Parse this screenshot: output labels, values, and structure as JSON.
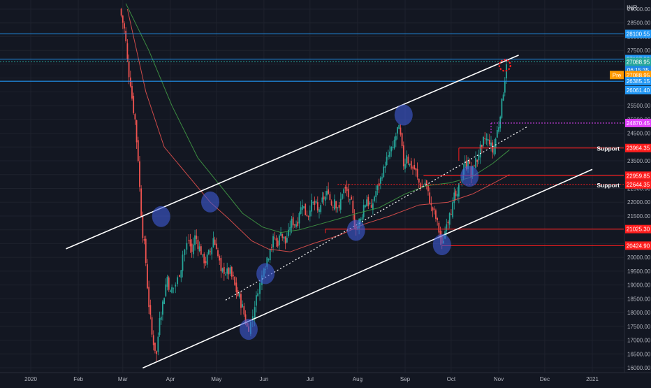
{
  "chart_data": {
    "type": "candlestick",
    "currency": "INR",
    "x_ticks": [
      {
        "label": "2020",
        "date": "2020-01-01"
      },
      {
        "label": "Feb",
        "date": "2020-02-01"
      },
      {
        "label": "Mar",
        "date": "2020-03-01"
      },
      {
        "label": "Apr",
        "date": "2020-04-01"
      },
      {
        "label": "May",
        "date": "2020-05-01"
      },
      {
        "label": "Jun",
        "date": "2020-06-01"
      },
      {
        "label": "Jul",
        "date": "2020-07-01"
      },
      {
        "label": "Aug",
        "date": "2020-08-01"
      },
      {
        "label": "Sep",
        "date": "2020-09-01"
      },
      {
        "label": "Oct",
        "date": "2020-10-01"
      },
      {
        "label": "Nov",
        "date": "2020-11-01"
      },
      {
        "label": "Dec",
        "date": "2020-12-01"
      },
      {
        "label": "2021",
        "date": "2021-01-01"
      }
    ],
    "y_ticks": [
      "16000.00",
      "16500.00",
      "17000.00",
      "17500.00",
      "18000.00",
      "18500.00",
      "19000.00",
      "19500.00",
      "20000.00",
      "20500.00",
      "21000.00",
      "21500.00",
      "22000.00",
      "22500.00",
      "23000.00",
      "23500.00",
      "24000.00",
      "24500.00",
      "25000.00",
      "25500.00",
      "26000.00",
      "26500.00",
      "27000.00",
      "27500.00",
      "28000.00",
      "28500.00",
      "29000.00"
    ],
    "ylim": [
      15930,
      29220
    ],
    "grid": true,
    "price_levels": [
      {
        "label": "28100.55",
        "value": 28100.55,
        "color": "#2196f3",
        "style": "solid"
      },
      {
        "label": "27187.80",
        "value": 27187.8,
        "color": "#2196f3",
        "style": "solid"
      },
      {
        "label": "27088.95",
        "value": 27088.95,
        "color": "#26a69a",
        "style": "dotted"
      },
      {
        "label": "06:15:35",
        "value": 26790,
        "color": "#1e88e5",
        "style": "none"
      },
      {
        "label": "27088.95",
        "prefix": "Pre",
        "value": 26610,
        "color": "#ff9800",
        "style": "none"
      },
      {
        "label": "26385.15",
        "value": 26385.15,
        "color": "#2196f3",
        "style": "solid"
      },
      {
        "label": "26061.40",
        "value": 26061.4,
        "color": "#2196f3",
        "style": "none"
      },
      {
        "label": "24870.45",
        "value": 24870.45,
        "color": "#e040fb",
        "style": "dotted"
      },
      {
        "label": "23964.35",
        "value": 23964.35,
        "color": "#ff1e1e",
        "style": "solid"
      },
      {
        "label": "22959.85",
        "value": 22959.85,
        "color": "#ff1e1e",
        "style": "solid"
      },
      {
        "label": "22644.35",
        "value": 22644.35,
        "color": "#ff1e1e",
        "style": "dotted"
      },
      {
        "label": "21025.30",
        "value": 21025.3,
        "color": "#ff1e1e",
        "style": "solid"
      },
      {
        "label": "20424.90",
        "value": 20424.9,
        "color": "#ff1e1e",
        "style": "solid"
      }
    ],
    "annotations": [
      {
        "text": "Support",
        "value": 23964.35
      },
      {
        "text": "Support",
        "value": 22644.35
      }
    ],
    "trend_lines": [
      {
        "kind": "upper-channel",
        "start": [
          "2020-01-24",
          20310
        ],
        "end": [
          "2020-11-14",
          27330
        ]
      },
      {
        "kind": "lower-channel",
        "start": [
          "2020-03-14",
          15990
        ],
        "end": [
          "2021-01-01",
          23190
        ]
      },
      {
        "kind": "mid-dotted",
        "start": [
          "2020-05-07",
          18450
        ],
        "end": [
          "2020-11-20",
          24750
        ]
      }
    ],
    "touch_points": [
      {
        "date": "2020-03-26",
        "value": 21480
      },
      {
        "date": "2020-04-27",
        "value": 22010
      },
      {
        "date": "2020-05-22",
        "value": 17390
      },
      {
        "date": "2020-06-02",
        "value": 19410
      },
      {
        "date": "2020-07-31",
        "value": 20980
      },
      {
        "date": "2020-08-31",
        "value": 25160
      },
      {
        "date": "2020-09-25",
        "value": 20460
      },
      {
        "date": "2020-10-13",
        "value": 22940
      }
    ],
    "target_marker": {
      "date": "2020-11-05",
      "value": 26960
    },
    "series": [
      {
        "kind": "price",
        "points": [
          [
            "2020-02-28",
            29000
          ],
          [
            "2020-03-02",
            28300
          ],
          [
            "2020-03-04",
            27200
          ],
          [
            "2020-03-06",
            26200
          ],
          [
            "2020-03-09",
            25000
          ],
          [
            "2020-03-11",
            23500
          ],
          [
            "2020-03-13",
            21500
          ],
          [
            "2020-03-16",
            19800
          ],
          [
            "2020-03-18",
            18200
          ],
          [
            "2020-03-20",
            17200
          ],
          [
            "2020-03-23",
            16500
          ],
          [
            "2020-03-25",
            17800
          ],
          [
            "2020-03-27",
            18400
          ],
          [
            "2020-03-30",
            19300
          ],
          [
            "2020-04-01",
            18800
          ],
          [
            "2020-04-03",
            18900
          ],
          [
            "2020-04-07",
            19300
          ],
          [
            "2020-04-09",
            20100
          ],
          [
            "2020-04-13",
            20600
          ],
          [
            "2020-04-15",
            20200
          ],
          [
            "2020-04-17",
            20800
          ],
          [
            "2020-04-20",
            20400
          ],
          [
            "2020-04-22",
            20100
          ],
          [
            "2020-04-24",
            19800
          ],
          [
            "2020-04-27",
            20200
          ],
          [
            "2020-04-29",
            20700
          ],
          [
            "2020-05-01",
            20300
          ],
          [
            "2020-05-04",
            19500
          ],
          [
            "2020-05-06",
            19400
          ],
          [
            "2020-05-08",
            19600
          ],
          [
            "2020-05-11",
            19300
          ],
          [
            "2020-05-13",
            19000
          ],
          [
            "2020-05-15",
            18600
          ],
          [
            "2020-05-18",
            18300
          ],
          [
            "2020-05-20",
            17600
          ],
          [
            "2020-05-22",
            17300
          ],
          [
            "2020-05-26",
            18200
          ],
          [
            "2020-05-28",
            18700
          ],
          [
            "2020-06-01",
            19600
          ],
          [
            "2020-06-03",
            20000
          ],
          [
            "2020-06-05",
            20300
          ],
          [
            "2020-06-08",
            20700
          ],
          [
            "2020-06-10",
            20400
          ],
          [
            "2020-06-12",
            20900
          ],
          [
            "2020-06-15",
            20500
          ],
          [
            "2020-06-17",
            21000
          ],
          [
            "2020-06-19",
            21400
          ],
          [
            "2020-06-22",
            21200
          ],
          [
            "2020-06-24",
            21600
          ],
          [
            "2020-06-26",
            21900
          ],
          [
            "2020-06-29",
            21500
          ],
          [
            "2020-07-01",
            21700
          ],
          [
            "2020-07-03",
            22000
          ],
          [
            "2020-07-06",
            21700
          ],
          [
            "2020-07-08",
            21900
          ],
          [
            "2020-07-10",
            22100
          ],
          [
            "2020-07-13",
            22300
          ],
          [
            "2020-07-15",
            21900
          ],
          [
            "2020-07-17",
            22100
          ],
          [
            "2020-07-20",
            21800
          ],
          [
            "2020-07-22",
            22300
          ],
          [
            "2020-07-24",
            22500
          ],
          [
            "2020-07-27",
            22100
          ],
          [
            "2020-07-29",
            21600
          ],
          [
            "2020-07-31",
            21000
          ],
          [
            "2020-08-03",
            21400
          ],
          [
            "2020-08-05",
            21900
          ],
          [
            "2020-08-07",
            22100
          ],
          [
            "2020-08-10",
            21800
          ],
          [
            "2020-08-12",
            22200
          ],
          [
            "2020-08-14",
            22600
          ],
          [
            "2020-08-17",
            22900
          ],
          [
            "2020-08-19",
            23300
          ],
          [
            "2020-08-21",
            23700
          ],
          [
            "2020-08-24",
            24000
          ],
          [
            "2020-08-26",
            24400
          ],
          [
            "2020-08-28",
            24800
          ],
          [
            "2020-08-31",
            23300
          ],
          [
            "2020-09-02",
            23700
          ],
          [
            "2020-09-04",
            23400
          ],
          [
            "2020-09-07",
            23200
          ],
          [
            "2020-09-09",
            22900
          ],
          [
            "2020-09-11",
            22500
          ],
          [
            "2020-09-14",
            22700
          ],
          [
            "2020-09-16",
            22400
          ],
          [
            "2020-09-18",
            21900
          ],
          [
            "2020-09-21",
            21400
          ],
          [
            "2020-09-23",
            20900
          ],
          [
            "2020-09-25",
            20500
          ],
          [
            "2020-09-28",
            21200
          ],
          [
            "2020-09-30",
            21600
          ],
          [
            "2020-10-02",
            22000
          ],
          [
            "2020-10-05",
            22300
          ],
          [
            "2020-10-07",
            22700
          ],
          [
            "2020-10-09",
            23200
          ],
          [
            "2020-10-12",
            23500
          ],
          [
            "2020-10-14",
            22900
          ],
          [
            "2020-10-16",
            23300
          ],
          [
            "2020-10-19",
            23700
          ],
          [
            "2020-10-21",
            24000
          ],
          [
            "2020-10-23",
            24300
          ],
          [
            "2020-10-26",
            24100
          ],
          [
            "2020-10-28",
            23800
          ],
          [
            "2020-10-30",
            24300
          ],
          [
            "2020-11-02",
            25100
          ],
          [
            "2020-11-04",
            25900
          ],
          [
            "2020-11-05",
            26400
          ],
          [
            "2020-11-06",
            27000
          ]
        ]
      },
      {
        "kind": "moving-average",
        "color": "#ef5350",
        "points": [
          [
            "2020-03-04",
            29000
          ],
          [
            "2020-03-16",
            26000
          ],
          [
            "2020-03-28",
            24000
          ],
          [
            "2020-04-12",
            23000
          ],
          [
            "2020-04-27",
            22000
          ],
          [
            "2020-05-09",
            21400
          ],
          [
            "2020-05-24",
            20600
          ],
          [
            "2020-06-04",
            20300
          ],
          [
            "2020-06-18",
            20200
          ],
          [
            "2020-07-03",
            20500
          ],
          [
            "2020-07-20",
            20800
          ],
          [
            "2020-08-05",
            21200
          ],
          [
            "2020-08-22",
            21500
          ],
          [
            "2020-09-10",
            21900
          ],
          [
            "2020-09-29",
            22000
          ],
          [
            "2020-10-15",
            22300
          ],
          [
            "2020-10-29",
            22700
          ],
          [
            "2020-11-08",
            23000
          ]
        ]
      },
      {
        "kind": "moving-average",
        "color": "#43a047",
        "points": [
          [
            "2020-03-03",
            29200
          ],
          [
            "2020-03-18",
            27500
          ],
          [
            "2020-04-02",
            25500
          ],
          [
            "2020-04-19",
            23600
          ],
          [
            "2020-05-05",
            22500
          ],
          [
            "2020-05-18",
            21600
          ],
          [
            "2020-05-31",
            21100
          ],
          [
            "2020-06-12",
            20900
          ],
          [
            "2020-06-24",
            21000
          ],
          [
            "2020-07-07",
            21200
          ],
          [
            "2020-07-20",
            21400
          ],
          [
            "2020-08-01",
            21600
          ],
          [
            "2020-08-15",
            21800
          ],
          [
            "2020-09-01",
            22300
          ],
          [
            "2020-09-15",
            22600
          ],
          [
            "2020-09-30",
            22700
          ],
          [
            "2020-10-14",
            22900
          ],
          [
            "2020-10-28",
            23400
          ],
          [
            "2020-11-08",
            23900
          ]
        ]
      }
    ]
  }
}
